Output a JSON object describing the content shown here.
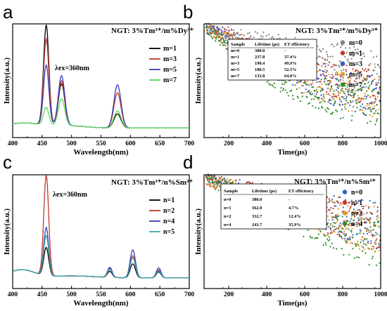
{
  "chart_data": [
    {
      "panel": "a",
      "type": "line",
      "title": "NGT: 3%Tm³⁺/m%Dy³⁺",
      "annotation": "λex=360nm",
      "xlabel": "Wavelength(nm)",
      "ylabel": "Intensity(a.u.)",
      "xlim": [
        400,
        700
      ],
      "xticks": [
        400,
        450,
        500,
        550,
        600,
        650,
        700
      ],
      "legend": "top-right",
      "grid": false,
      "series": [
        {
          "name": "m=1",
          "color": "#000000",
          "peaks": {
            "457": 1.0,
            "483": 0.42,
            "578": 0.14
          }
        },
        {
          "name": "m=3",
          "color": "#c0392b",
          "peaks": {
            "457": 0.86,
            "483": 0.45,
            "578": 0.35
          }
        },
        {
          "name": "m=5",
          "color": "#3b3fb5",
          "peaks": {
            "457": 0.6,
            "483": 0.5,
            "578": 0.43
          }
        },
        {
          "name": "m=7",
          "color": "#55dd55",
          "peaks": {
            "457": 0.18,
            "483": 0.27,
            "578": 0.17
          }
        }
      ]
    },
    {
      "panel": "b",
      "type": "scatter",
      "title": "NGT: 3%Tm³⁺/m%Dy³⁺",
      "xlabel": "Time(μs)",
      "ylabel": "Intensity(a.u.)",
      "xlim": [
        70,
        1000
      ],
      "xticks": [
        200,
        400,
        600,
        800,
        1000
      ],
      "legend": "right",
      "series": [
        {
          "name": "m=0",
          "color": "#808080",
          "lifetime": 380.0
        },
        {
          "name": "m=1",
          "color": "#c0392b",
          "lifetime": 237.8
        },
        {
          "name": "m=3",
          "color": "#2f5fcc",
          "lifetime": 190.4
        },
        {
          "name": "m=5",
          "color": "#e39a2a",
          "lifetime": 180.5
        },
        {
          "name": "m=7",
          "color": "#2e8b2e",
          "lifetime": 133.8
        }
      ],
      "table": {
        "headers": [
          "Sample",
          "Lifetime (μs)",
          "ET efficiency"
        ],
        "rows": [
          [
            "m=0",
            "380.0",
            "-"
          ],
          [
            "m=1",
            "237.8",
            "37.4%"
          ],
          [
            "m=3",
            "190.4",
            "49.9%"
          ],
          [
            "m=5",
            "180.5",
            "52.5%"
          ],
          [
            "m=7",
            "133.8",
            "64.8%"
          ]
        ]
      }
    },
    {
      "panel": "c",
      "type": "line",
      "title": "NGT: 3%Tm³⁺/n%Sm³⁺",
      "annotation": "λex=360nm",
      "xlabel": "Wavelength(nm)",
      "ylabel": "Intensity(a.u.)",
      "xlim": [
        400,
        700
      ],
      "xticks": [
        400,
        450,
        500,
        550,
        600,
        650,
        700
      ],
      "legend": "top-right",
      "grid": false,
      "series": [
        {
          "name": "n=1",
          "color": "#000000",
          "peaks": {
            "457": 0.28,
            "565": 0.06,
            "604": 0.14,
            "648": 0.06
          }
        },
        {
          "name": "n=2",
          "color": "#c0392b",
          "peaks": {
            "457": 1.0,
            "565": 0.09,
            "604": 0.22,
            "648": 0.08
          }
        },
        {
          "name": "n=4",
          "color": "#3b3fb5",
          "peaks": {
            "457": 0.48,
            "565": 0.1,
            "604": 0.28,
            "648": 0.1
          }
        },
        {
          "name": "n=5",
          "color": "#3aa6a6",
          "peaks": {
            "457": 0.4,
            "565": 0.08,
            "604": 0.2,
            "648": 0.07
          }
        }
      ]
    },
    {
      "panel": "d",
      "type": "scatter",
      "title": "NGT: 3%Tm³⁺/n%Sm³⁺",
      "xlabel": "Time(μs)",
      "ylabel": "Intensity(a.u.)",
      "xlim": [
        70,
        1000
      ],
      "xticks": [
        200,
        400,
        600,
        800,
        1000
      ],
      "legend": "right",
      "series": [
        {
          "name": "n=0",
          "color": "#2f5fcc",
          "lifetime": 380.0
        },
        {
          "name": "n=1",
          "color": "#c0392b",
          "lifetime": 362.0
        },
        {
          "name": "n=2",
          "color": "#e39a2a",
          "lifetime": 332.7
        },
        {
          "name": "n=4",
          "color": "#2e8b2e",
          "lifetime": 243.7
        }
      ],
      "table": {
        "headers": [
          "Sample",
          "Lifetime (μs)",
          "ET efficiency"
        ],
        "rows": [
          [
            "n=0",
            "380.0",
            "-"
          ],
          [
            "n=1",
            "362.0",
            "4.7%"
          ],
          [
            "n=2",
            "332.7",
            "12.4%"
          ],
          [
            "n=4",
            "243.7",
            "35.9%"
          ]
        ]
      }
    }
  ]
}
